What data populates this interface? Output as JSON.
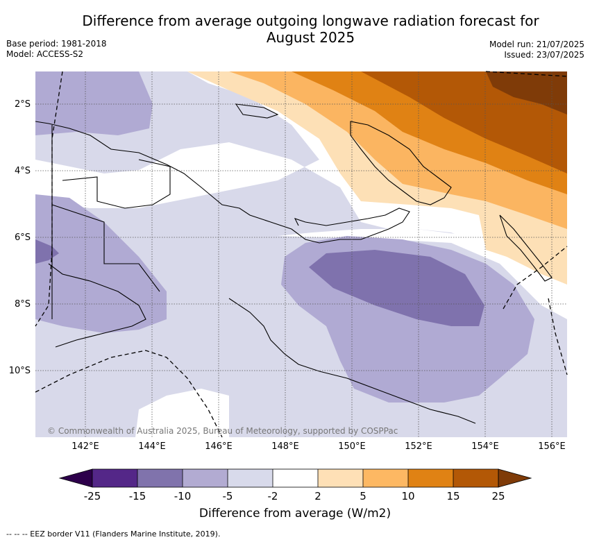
{
  "header": {
    "title_line1": "Difference from average outgoing longwave radiation forecast for",
    "title_line2": "August 2025",
    "base_period": "Base period: 1981-2018",
    "model": "Model: ACCESS-S2",
    "model_run": "Model run: 21/07/2025",
    "issued": "Issued: 23/07/2025"
  },
  "map": {
    "lon_labels": [
      "142°E",
      "144°E",
      "146°E",
      "148°E",
      "150°E",
      "152°E",
      "154°E",
      "156°E"
    ],
    "lat_labels": [
      "2°S",
      "4°S",
      "6°S",
      "8°S",
      "10°S"
    ],
    "copyright": "© Commonwealth of Australia 2025, Bureau of Meteorology, supported by COSPPac",
    "colors": {
      "very_low": "#7f72ad",
      "low": "#b0aad3",
      "slightly_low": "#d8d9ea",
      "neutral": "#ffffff",
      "slightly_high": "#fde0b6",
      "high": "#fbb561",
      "higher": "#e08214",
      "very_high": "#b35806",
      "extreme": "#7f3b08"
    }
  },
  "colorbar": {
    "ticks": [
      "-25",
      "-15",
      "-10",
      "-5",
      "-2",
      "2",
      "5",
      "10",
      "15",
      "25"
    ],
    "colors": [
      "#542788",
      "#8073ac",
      "#b2abd2",
      "#d8daeb",
      "#ffffff",
      "#fee0b6",
      "#fdb863",
      "#e08214",
      "#b35806"
    ],
    "under_color": "#2d004b",
    "over_color": "#7f3b08",
    "title": "Difference from average (W/m2)"
  },
  "footnote": "--  --  -- EEZ border V11 (Flanders Marine Institute, 2019)."
}
